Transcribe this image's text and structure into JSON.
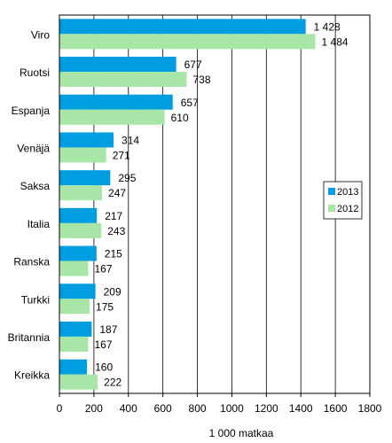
{
  "chart_data": {
    "type": "bar",
    "orientation": "horizontal",
    "title": "",
    "xlabel": "1 000 matkaa",
    "ylabel": "",
    "xlim": [
      0,
      1800
    ],
    "x_ticks": [
      "0",
      "200",
      "400",
      "600",
      "800",
      "1000",
      "1200",
      "1400",
      "1600",
      "1800"
    ],
    "grid": "vertical",
    "legend_position": "right",
    "categories": [
      "Viro",
      "Ruotsi",
      "Espanja",
      "Venäjä",
      "Saksa",
      "Italia",
      "Ranska",
      "Turkki",
      "Britannia",
      "Kreikka"
    ],
    "series": [
      {
        "name": "2013",
        "color": "#009ee0",
        "values": [
          1428,
          677,
          657,
          314,
          295,
          217,
          215,
          209,
          187,
          160
        ],
        "labels": [
          "1 428",
          "677",
          "657",
          "314",
          "295",
          "217",
          "215",
          "209",
          "187",
          "160"
        ]
      },
      {
        "name": "2012",
        "color": "#a8e6a8",
        "values": [
          1484,
          738,
          610,
          271,
          247,
          243,
          167,
          175,
          167,
          222
        ],
        "labels": [
          "1 484",
          "738",
          "610",
          "271",
          "247",
          "243",
          "167",
          "175",
          "167",
          "222"
        ]
      }
    ]
  }
}
